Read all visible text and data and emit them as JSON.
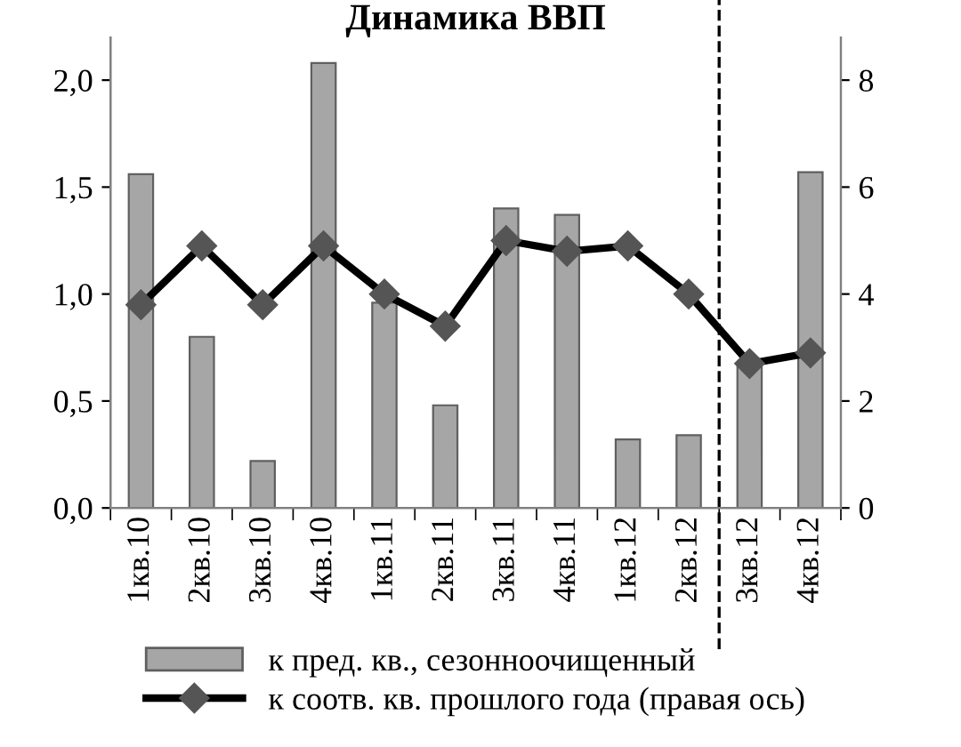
{
  "chart_data": {
    "type": "bar",
    "title": "Динамика ВВП",
    "categories": [
      "1кв.10",
      "2кв.10",
      "3кв.10",
      "4кв.10",
      "1кв.11",
      "2кв.11",
      "3кв.11",
      "4кв.11",
      "1кв.12",
      "2кв.12",
      "3кв.12",
      "4кв.12"
    ],
    "series": [
      {
        "name": "к пред. кв., сезонноочищенный",
        "color": "#a6a6a6",
        "values": [
          1.56,
          0.8,
          0.22,
          2.08,
          0.96,
          0.48,
          1.4,
          1.37,
          0.32,
          0.34,
          0.66,
          1.57
        ]
      },
      {
        "name": "к соотв. кв. прошлого года (правая ось)",
        "type": "line",
        "axis": "y2",
        "color": "#000000",
        "marker": "diamond",
        "values": [
          3.8,
          4.9,
          3.8,
          4.9,
          4.0,
          3.4,
          5.0,
          4.8,
          4.9,
          4.0,
          2.7,
          2.9
        ]
      }
    ],
    "ylim": [
      0,
      2.2
    ],
    "yticks": [
      {
        "value": 0,
        "label": "0,0"
      },
      {
        "value": 0.5,
        "label": "0,5"
      },
      {
        "value": 1,
        "label": "1,0"
      },
      {
        "value": 1.5,
        "label": "1,5"
      },
      {
        "value": 2,
        "label": "2,0"
      }
    ],
    "y2lim": [
      0,
      8.8
    ],
    "y2ticks": [
      0,
      2,
      4,
      6,
      8
    ],
    "legend": "bottom",
    "grid": false
  }
}
